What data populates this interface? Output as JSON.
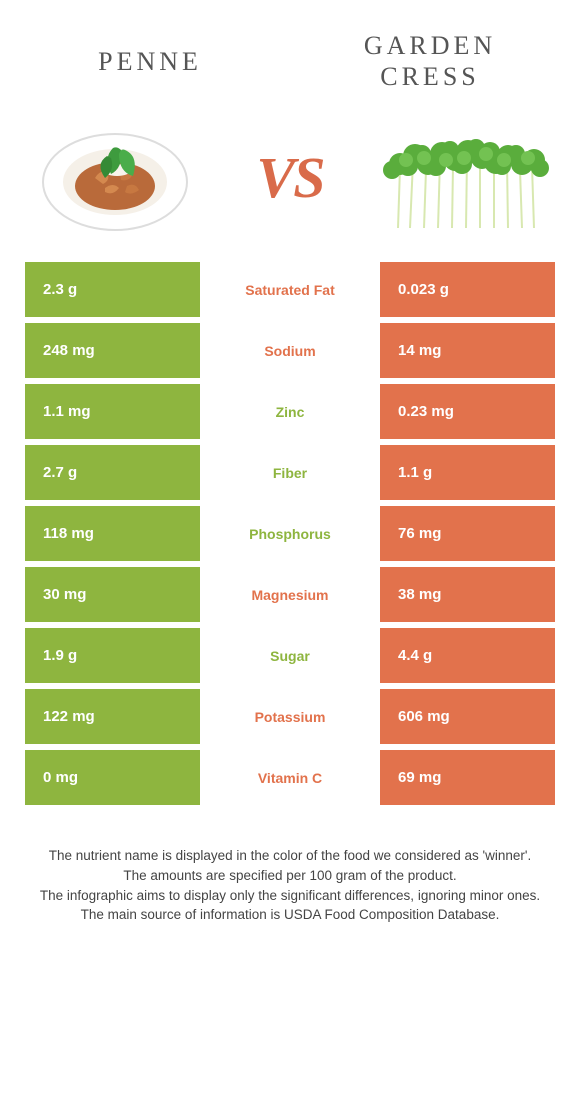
{
  "titles": {
    "left": "Penne",
    "right": "Garden cress",
    "vs": "VS"
  },
  "colors": {
    "left_bg": "#8eb53f",
    "right_bg": "#e2724c",
    "left_text": "#8eb53f",
    "right_text": "#e2724c"
  },
  "rows": [
    {
      "label": "Saturated Fat",
      "left": "2.3 g",
      "right": "0.023 g",
      "winner": "right"
    },
    {
      "label": "Sodium",
      "left": "248 mg",
      "right": "14 mg",
      "winner": "right"
    },
    {
      "label": "Zinc",
      "left": "1.1 mg",
      "right": "0.23 mg",
      "winner": "left"
    },
    {
      "label": "Fiber",
      "left": "2.7 g",
      "right": "1.1 g",
      "winner": "left"
    },
    {
      "label": "Phosphorus",
      "left": "118 mg",
      "right": "76 mg",
      "winner": "left"
    },
    {
      "label": "Magnesium",
      "left": "30 mg",
      "right": "38 mg",
      "winner": "right"
    },
    {
      "label": "Sugar",
      "left": "1.9 g",
      "right": "4.4 g",
      "winner": "left"
    },
    {
      "label": "Potassium",
      "left": "122 mg",
      "right": "606 mg",
      "winner": "right"
    },
    {
      "label": "Vitamin C",
      "left": "0 mg",
      "right": "69 mg",
      "winner": "right"
    }
  ],
  "footer": [
    "The nutrient name is displayed in the color of the food we considered as 'winner'.",
    "The amounts are specified per 100 gram of the product.",
    "The infographic aims to display only the significant differences, ignoring minor ones.",
    "The main source of information is USDA Food Composition Database."
  ]
}
